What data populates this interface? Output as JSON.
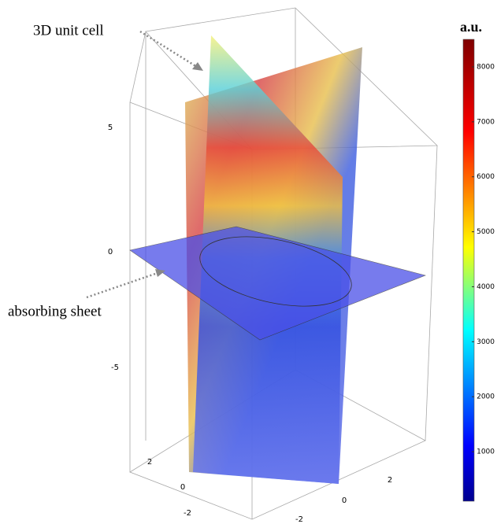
{
  "annotations": [
    "3D unit cell",
    "absorbing sheet"
  ],
  "colorbar": {
    "title": "a.u.",
    "lim": [
      100,
      8500
    ],
    "ticks": [
      1000,
      2000,
      3000,
      4000,
      5000,
      6000,
      7000,
      8000
    ]
  },
  "axes": {
    "z_ticks": [
      5,
      0,
      -5
    ],
    "x_ticks": [
      2,
      0,
      -2
    ],
    "y_ticks": [
      2,
      0,
      -2
    ]
  }
}
